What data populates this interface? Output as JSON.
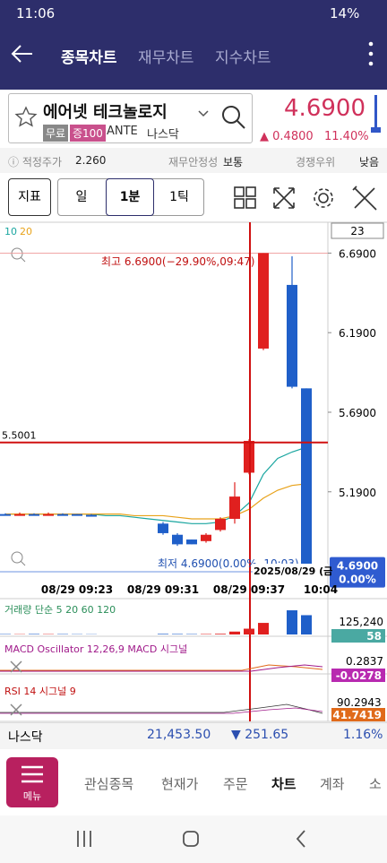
{
  "status": {
    "time": "11:06",
    "battery": "14%"
  },
  "nav": {
    "tabs": [
      "종목차트",
      "재무차트",
      "지수차트"
    ]
  },
  "stock": {
    "name": "에어넷 테크놀로지",
    "tags": [
      "무료",
      "증100"
    ],
    "codes": [
      "ANTE",
      "나스닥"
    ],
    "price": "4.6900",
    "change": "0.4800",
    "change_pct": "11.40%"
  },
  "info": [
    {
      "label": "적정주가",
      "value": "2.260"
    },
    {
      "label": "재무안정성",
      "value": "보통"
    },
    {
      "label": "경쟁우위",
      "value": "낮음"
    }
  ],
  "toolbar": [
    "지표",
    "일",
    "1분",
    "1틱"
  ],
  "chart_data": {
    "type": "candlestick",
    "legend": [
      "10",
      "20"
    ],
    "count_label": "23",
    "ylim": [
      4.62,
      6.85
    ],
    "yticks": [
      {
        "value": 6.69,
        "label": "6.6900"
      },
      {
        "value": 6.19,
        "label": "6.1900"
      },
      {
        "value": 5.69,
        "label": "5.6900"
      },
      {
        "value": 5.19,
        "label": "5.1900"
      }
    ],
    "current": {
      "value": 4.69,
      "label": "4.6900",
      "pct": "0.00%"
    },
    "ref_line": {
      "value": 5.5001,
      "label": "5.5001"
    },
    "high_note": "최고 6.6900(−29.90%,09:47)",
    "low_note": "최저 4.6900(0.00%, 10:03)",
    "crosshair_label": "2025/08/29 (금",
    "categories": [
      null,
      null,
      null,
      null,
      null,
      "08/29 09:23",
      null,
      null,
      null,
      null,
      null,
      "08/29 09:31",
      null,
      null,
      null,
      null,
      null,
      "08/29 09:37",
      null,
      null,
      null,
      null,
      "10:04"
    ],
    "open": [
      5.05,
      5.045,
      5.05,
      5.045,
      5.05,
      5.05,
      5.045,
      null,
      null,
      null,
      null,
      4.99,
      4.92,
      4.89,
      4.88,
      4.95,
      5.02,
      5.31,
      6.09,
      null,
      6.49,
      5.84,
      null
    ],
    "high": [
      5.055,
      5.06,
      5.055,
      5.06,
      5.055,
      5.05,
      5.05,
      null,
      null,
      null,
      null,
      5.0,
      4.93,
      4.89,
      4.93,
      5.03,
      5.25,
      5.52,
      6.69,
      null,
      6.67,
      5.84,
      null
    ],
    "low": [
      5.04,
      5.04,
      5.04,
      5.04,
      5.04,
      5.04,
      5.035,
      null,
      null,
      null,
      null,
      4.92,
      4.85,
      4.86,
      4.87,
      4.94,
      4.99,
      5.3,
      6.08,
      null,
      5.84,
      4.69,
      null
    ],
    "close": [
      5.045,
      5.05,
      5.045,
      5.05,
      5.045,
      5.045,
      5.04,
      null,
      null,
      null,
      null,
      4.93,
      4.86,
      4.86,
      4.92,
      5.02,
      5.16,
      5.51,
      6.69,
      null,
      5.85,
      4.69,
      null
    ],
    "series": [
      {
        "name": "10",
        "color": "#1aa6a0",
        "values": [
          5.05,
          5.05,
          5.05,
          5.05,
          5.05,
          5.05,
          5.05,
          5.04,
          5.04,
          5.03,
          5.02,
          5.01,
          5.0,
          4.99,
          4.99,
          5.0,
          5.04,
          5.12,
          5.3,
          5.4,
          5.44,
          5.47,
          null
        ]
      },
      {
        "name": "20",
        "color": "#e8a21a",
        "values": [
          5.05,
          5.05,
          5.05,
          5.05,
          5.05,
          5.05,
          5.05,
          5.05,
          5.05,
          5.04,
          5.04,
          5.04,
          5.03,
          5.02,
          5.02,
          5.02,
          5.04,
          5.08,
          5.15,
          5.2,
          5.23,
          5.24,
          null
        ]
      }
    ],
    "volume": {
      "title": "거래량 단순 5 20 60 120",
      "max_label": "125,240",
      "last_label": "58",
      "ylim": [
        0,
        130000
      ],
      "values": [
        2000,
        1500,
        2500,
        1800,
        2000,
        1500,
        1200,
        null,
        null,
        null,
        null,
        3000,
        2500,
        2000,
        2200,
        3500,
        15000,
        30000,
        60000,
        null,
        125240,
        100000,
        null
      ]
    },
    "macd": {
      "title": "MACD Oscillator 12,26,9 MACD 시그널",
      "top_label": "0.2837",
      "last_label": "-0.0278"
    },
    "rsi": {
      "title": "RSI 14 시그널 9",
      "top_label": "90.2943",
      "last_label": "41.7419"
    }
  },
  "ticker": {
    "name": "나스닥",
    "value": "21,453.50",
    "change": "251.65",
    "pct": "1.16%"
  },
  "bottom_nav": {
    "menu": "메뉴",
    "items": [
      "관심종목",
      "현재가",
      "주문",
      "차트",
      "계좌",
      "소"
    ]
  }
}
